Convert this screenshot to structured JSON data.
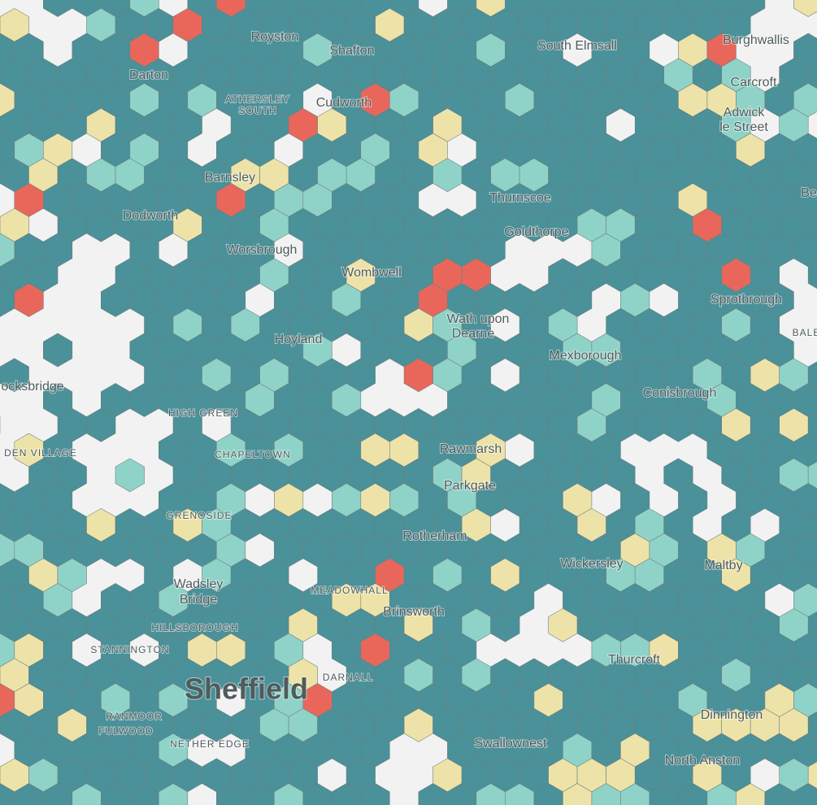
{
  "places": [
    "Royston",
    "Shafton",
    "South Elmsall",
    "Burghwallis",
    "Darton",
    "ATHERSLEY",
    "SOUTH",
    "Cudworth",
    "Carcroft",
    "Adwick",
    "le Street",
    "Barnsley",
    "Thurnscoe",
    "Be",
    "Dodworth",
    "Goldthorpe",
    "Worsbrough",
    "Wombwell",
    "Sprotbrough",
    "Hoyland",
    "Wath upon",
    "Dearne",
    "BALE",
    "Mexborough",
    "Conisbrough",
    "ocksbridge",
    "HIGH GREEN",
    "CHAPELTOWN",
    "DEN VILLAGE",
    "Rawmarsh",
    "Parkgate",
    "GRENOSIDE",
    "Rotherham",
    "Wickersley",
    "Maltby",
    "Wadsley",
    "Bridge",
    "MEADOWHALL",
    "Brinsworth",
    "HILLSBOROUGH",
    "STANNINGTON",
    "Thurcroft",
    "Sheffield",
    "DARNALL",
    "RANMOOR",
    "FULWOOD",
    "NETHER EDGE",
    "Dinnington",
    "Swallownest",
    "North Anston"
  ]
}
